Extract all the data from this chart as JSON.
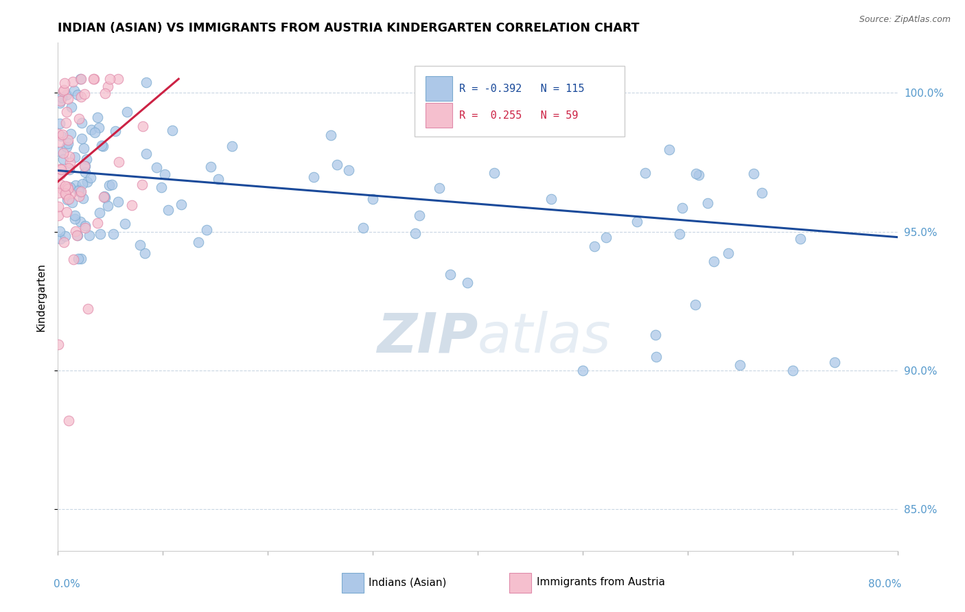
{
  "title": "INDIAN (ASIAN) VS IMMIGRANTS FROM AUSTRIA KINDERGARTEN CORRELATION CHART",
  "source_text": "Source: ZipAtlas.com",
  "ylabel": "Kindergarten",
  "y_ticks": [
    85.0,
    90.0,
    95.0,
    100.0
  ],
  "x_min": 0.0,
  "x_max": 80.0,
  "y_min": 83.5,
  "y_max": 101.8,
  "blue_R": -0.392,
  "blue_N": 115,
  "pink_R": 0.255,
  "pink_N": 59,
  "blue_color": "#adc8e8",
  "blue_edge_color": "#7aaad0",
  "pink_color": "#f5bfce",
  "pink_edge_color": "#e08aaa",
  "trend_blue_color": "#1a4a9a",
  "trend_pink_color": "#cc2244",
  "legend_label_blue": "Indians (Asian)",
  "legend_label_pink": "Immigrants from Austria",
  "title_fontsize": 12.5,
  "axis_label_color": "#5599cc",
  "watermark_color": "#ccd8e8",
  "watermark_alpha": 0.6,
  "blue_trend_x0": 0.0,
  "blue_trend_x1": 80.0,
  "blue_trend_y0": 97.2,
  "blue_trend_y1": 94.8,
  "pink_trend_x0": 0.0,
  "pink_trend_x1": 11.5,
  "pink_trend_y0": 96.8,
  "pink_trend_y1": 100.5
}
